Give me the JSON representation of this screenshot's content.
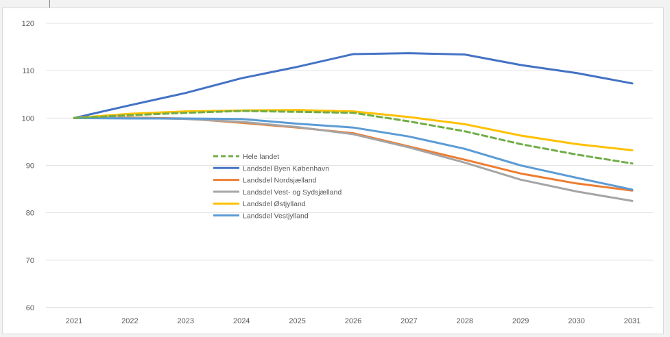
{
  "chart_data": {
    "type": "line",
    "x": [
      "2021",
      "2022",
      "2023",
      "2024",
      "2025",
      "2026",
      "2027",
      "2028",
      "2029",
      "2030",
      "2031"
    ],
    "ylim": [
      60,
      120
    ],
    "yticks": [
      60,
      70,
      80,
      90,
      100,
      110,
      120
    ],
    "grid": true,
    "legend_position": "center-left",
    "series": [
      {
        "name": "Hele landet",
        "color": "#70ad47",
        "dashed": true,
        "values": [
          100,
          100.6,
          101.1,
          101.5,
          101.3,
          101.1,
          99.3,
          97.2,
          94.5,
          92.3,
          90.4
        ]
      },
      {
        "name": "Landsdel Byen København",
        "color": "#4472c4",
        "dashed": false,
        "values": [
          100,
          102.7,
          105.3,
          108.4,
          110.8,
          113.5,
          113.7,
          113.4,
          111.2,
          109.5,
          107.3
        ]
      },
      {
        "name": "Landsdel Nordsjælland",
        "color": "#ed7d31",
        "dashed": false,
        "values": [
          100,
          100.1,
          99.9,
          99.0,
          98.0,
          96.8,
          94.0,
          91.2,
          88.3,
          86.2,
          84.7
        ]
      },
      {
        "name": "Landsdel Vest- og Sydsjælland",
        "color": "#a5a5a5",
        "dashed": false,
        "values": [
          100,
          100.0,
          99.8,
          99.2,
          98.1,
          96.6,
          93.8,
          90.6,
          87.0,
          84.5,
          82.5
        ]
      },
      {
        "name": "Landsdel Østjylland",
        "color": "#ffc000",
        "dashed": false,
        "values": [
          100,
          100.9,
          101.4,
          101.6,
          101.7,
          101.4,
          100.2,
          98.7,
          96.3,
          94.5,
          93.2
        ]
      },
      {
        "name": "Landsdel Vestjylland",
        "color": "#5b9bd5",
        "dashed": false,
        "values": [
          100,
          99.9,
          99.9,
          99.8,
          98.8,
          98.0,
          96.1,
          93.5,
          90.0,
          87.4,
          84.9
        ]
      }
    ]
  }
}
